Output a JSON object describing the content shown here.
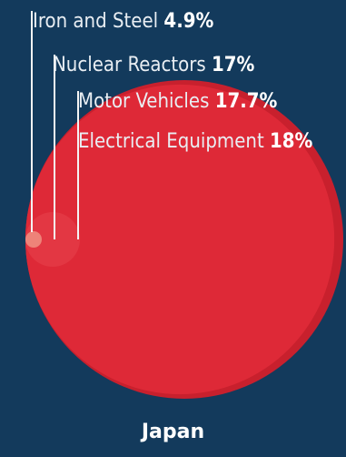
{
  "chart_data": {
    "type": "bubble",
    "country": "Japan",
    "series": [
      {
        "label": "Iron and Steel",
        "value_label": "4.9%",
        "value": 4.9
      },
      {
        "label": "Nuclear Reactors",
        "value_label": "17%",
        "value": 17
      },
      {
        "label": "Motor Vehicles",
        "value_label": "17.7%",
        "value": 17.7
      },
      {
        "label": "Electrical Equipment",
        "value_label": "18%",
        "value": 18
      }
    ]
  },
  "colors": {
    "background": "#133a5c",
    "bubble": "#c8202e",
    "bubble_inner": "#e02a38",
    "bubble_small": "#e84a52",
    "bubble_tiny": "#f2b39a",
    "leader": "#f4f4f4"
  }
}
